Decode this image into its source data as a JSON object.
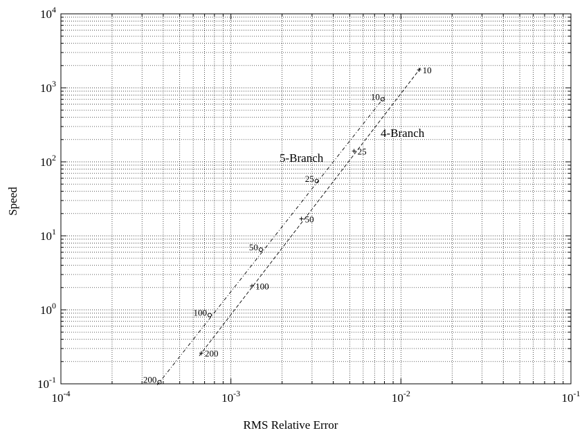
{
  "chart_data": {
    "type": "scatter",
    "title": "",
    "xlabel": "RMS Relative Error",
    "ylabel": "Speed",
    "x_scale": "log",
    "y_scale": "log",
    "xlim": [
      0.0001,
      0.1
    ],
    "ylim": [
      0.1,
      10000
    ],
    "grid": true,
    "x_ticks": [
      {
        "value": 0.0001,
        "base": "10",
        "exp": "-4"
      },
      {
        "value": 0.001,
        "base": "10",
        "exp": "-3"
      },
      {
        "value": 0.01,
        "base": "10",
        "exp": "-2"
      },
      {
        "value": 0.1,
        "base": "10",
        "exp": "-1"
      }
    ],
    "y_ticks": [
      {
        "value": 0.1,
        "base": "10",
        "exp": "-1"
      },
      {
        "value": 1,
        "base": "10",
        "exp": "0"
      },
      {
        "value": 10,
        "base": "10",
        "exp": "1"
      },
      {
        "value": 100,
        "base": "10",
        "exp": "2"
      },
      {
        "value": 1000,
        "base": "10",
        "exp": "3"
      },
      {
        "value": 10000,
        "base": "10",
        "exp": "4"
      }
    ],
    "series": [
      {
        "name": "5-Branch",
        "marker": "o",
        "line": "dash-dot",
        "points": [
          {
            "label": "10",
            "x": 0.0078,
            "y": 700
          },
          {
            "label": "25",
            "x": 0.0032,
            "y": 55
          },
          {
            "label": "50",
            "x": 0.0015,
            "y": 6.5
          },
          {
            "label": "100",
            "x": 0.00075,
            "y": 0.85
          },
          {
            "label": "200",
            "x": 0.00038,
            "y": 0.105
          }
        ]
      },
      {
        "name": "4-Branch",
        "marker": "+",
        "line": "dashed",
        "points": [
          {
            "label": "10",
            "x": 0.0128,
            "y": 1750
          },
          {
            "label": "25",
            "x": 0.0053,
            "y": 140
          },
          {
            "label": "50",
            "x": 0.0026,
            "y": 17
          },
          {
            "label": "100",
            "x": 0.00133,
            "y": 2.1
          },
          {
            "label": "200",
            "x": 0.00067,
            "y": 0.26
          }
        ]
      }
    ]
  }
}
